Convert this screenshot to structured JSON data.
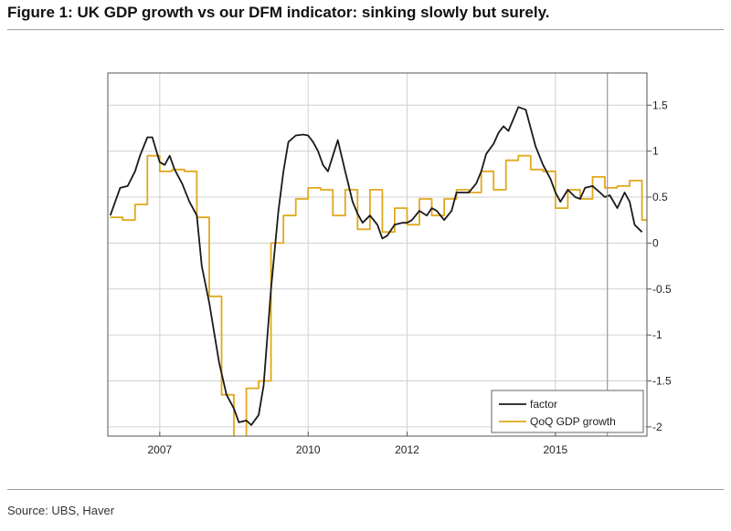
{
  "title": "Figure 1: UK GDP growth vs our DFM indicator: sinking slowly but surely.",
  "source": "Source: UBS, Haver",
  "chart_data": {
    "type": "line",
    "title": "",
    "xlabel": "",
    "ylabel": "",
    "xlim": [
      2005.95,
      2016.85
    ],
    "ylim": [
      -2.1,
      1.85
    ],
    "x_ticks": [
      2007,
      2010,
      2012,
      2015
    ],
    "x_tick_labels": [
      "2007",
      "2010",
      "2012",
      "2015"
    ],
    "y_ticks": [
      1.5,
      1,
      0.5,
      0,
      -0.5,
      -1,
      -1.5,
      -2
    ],
    "y_tick_labels": [
      "1.5",
      "1",
      "0.5",
      "0",
      "-0.5",
      "-1",
      "-1.5",
      "-2"
    ],
    "y_axis_side": "right",
    "grid": true,
    "legend_position": "bottom-right",
    "vertical_marker_x": 2016.05,
    "colors": {
      "factor": "#1a1a1a",
      "gdp": "#e0a81c",
      "marker": "#999999",
      "grid": "#d0d0d0"
    },
    "series": [
      {
        "name": "factor",
        "key": "factor",
        "line_style": "line",
        "x": [
          2006.0,
          2006.1,
          2006.2,
          2006.35,
          2006.5,
          2006.6,
          2006.75,
          2006.85,
          2007.0,
          2007.1,
          2007.2,
          2007.3,
          2007.45,
          2007.6,
          2007.75,
          2007.85,
          2008.0,
          2008.2,
          2008.35,
          2008.5,
          2008.6,
          2008.75,
          2008.85,
          2009.0,
          2009.1,
          2009.25,
          2009.4,
          2009.5,
          2009.6,
          2009.75,
          2009.9,
          2010.0,
          2010.1,
          2010.2,
          2010.3,
          2010.4,
          2010.5,
          2010.6,
          2010.75,
          2010.9,
          2011.0,
          2011.1,
          2011.25,
          2011.4,
          2011.5,
          2011.6,
          2011.75,
          2011.9,
          2012.0,
          2012.1,
          2012.25,
          2012.4,
          2012.5,
          2012.6,
          2012.75,
          2012.9,
          2013.0,
          2013.1,
          2013.25,
          2013.4,
          2013.5,
          2013.6,
          2013.75,
          2013.85,
          2013.95,
          2014.05,
          2014.15,
          2014.25,
          2014.4,
          2014.5,
          2014.6,
          2014.75,
          2014.9,
          2015.0,
          2015.1,
          2015.25,
          2015.4,
          2015.5,
          2015.6,
          2015.75,
          2015.9,
          2016.0,
          2016.1,
          2016.25,
          2016.4,
          2016.5,
          2016.6,
          2016.75
        ],
        "values": [
          0.3,
          0.45,
          0.6,
          0.62,
          0.78,
          0.95,
          1.15,
          1.15,
          0.88,
          0.85,
          0.95,
          0.8,
          0.65,
          0.45,
          0.3,
          -0.25,
          -0.65,
          -1.3,
          -1.65,
          -1.8,
          -1.95,
          -1.93,
          -1.98,
          -1.87,
          -1.55,
          -0.5,
          0.35,
          0.78,
          1.1,
          1.17,
          1.18,
          1.17,
          1.1,
          1.0,
          0.85,
          0.78,
          0.95,
          1.12,
          0.78,
          0.45,
          0.32,
          0.22,
          0.3,
          0.2,
          0.05,
          0.08,
          0.2,
          0.22,
          0.22,
          0.25,
          0.35,
          0.3,
          0.38,
          0.35,
          0.25,
          0.35,
          0.55,
          0.55,
          0.55,
          0.65,
          0.78,
          0.97,
          1.08,
          1.2,
          1.27,
          1.22,
          1.35,
          1.48,
          1.45,
          1.25,
          1.05,
          0.85,
          0.7,
          0.55,
          0.45,
          0.58,
          0.5,
          0.48,
          0.6,
          0.62,
          0.55,
          0.5,
          0.52,
          0.38,
          0.55,
          0.45,
          0.2,
          0.12
        ]
      },
      {
        "name": "QoQ GDP growth",
        "key": "gdp",
        "line_style": "step",
        "x": [
          2006.0,
          2006.25,
          2006.5,
          2006.75,
          2007.0,
          2007.25,
          2007.5,
          2007.75,
          2008.0,
          2008.25,
          2008.5,
          2008.75,
          2009.0,
          2009.25,
          2009.5,
          2009.75,
          2010.0,
          2010.25,
          2010.5,
          2010.75,
          2011.0,
          2011.25,
          2011.5,
          2011.75,
          2012.0,
          2012.25,
          2012.5,
          2012.75,
          2013.0,
          2013.25,
          2013.5,
          2013.75,
          2014.0,
          2014.25,
          2014.5,
          2014.75,
          2015.0,
          2015.25,
          2015.5,
          2015.75,
          2016.0,
          2016.25,
          2016.5,
          2016.75
        ],
        "values": [
          0.28,
          0.25,
          0.42,
          0.95,
          0.78,
          0.8,
          0.78,
          0.28,
          -0.58,
          -1.65,
          -2.15,
          -1.58,
          -1.5,
          0.0,
          0.3,
          0.48,
          0.6,
          0.58,
          0.3,
          0.58,
          0.15,
          0.58,
          0.12,
          0.38,
          0.2,
          0.48,
          0.3,
          0.48,
          0.58,
          0.55,
          0.78,
          0.58,
          0.9,
          0.95,
          0.8,
          0.78,
          0.38,
          0.58,
          0.48,
          0.72,
          0.6,
          0.62,
          0.68,
          0.25
        ]
      }
    ]
  }
}
